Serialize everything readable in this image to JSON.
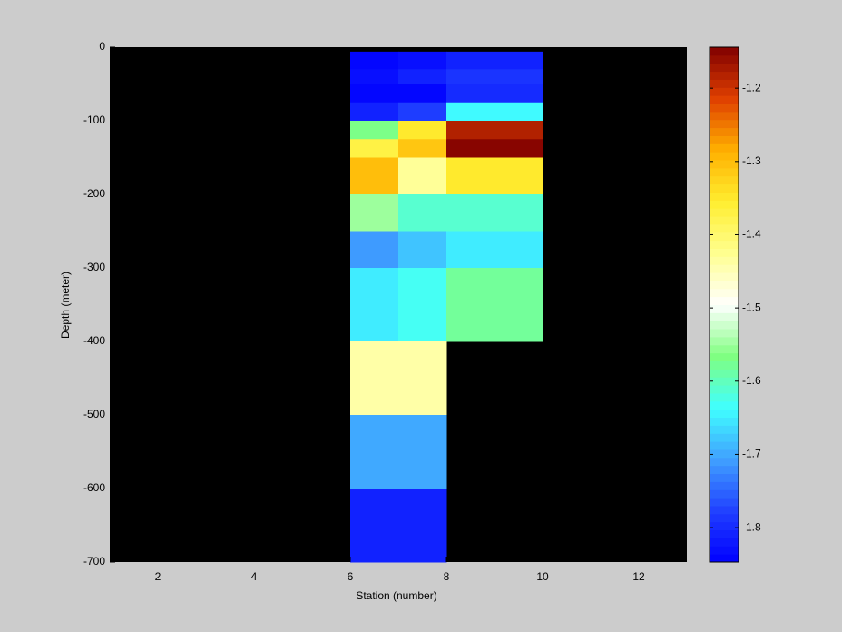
{
  "chart_data": {
    "type": "heatmap",
    "xlabel": "Station (number)",
    "ylabel": "Depth (meter)",
    "x_edges": [
      6,
      7,
      8,
      10
    ],
    "y_edges": [
      -6,
      -30,
      -50,
      -75,
      -100,
      -125,
      -150,
      -200,
      -250,
      -300,
      -400,
      -500,
      -600,
      -700
    ],
    "values": [
      [
        -1.84,
        -1.83,
        -1.81
      ],
      [
        -1.83,
        -1.81,
        -1.79
      ],
      [
        -1.84,
        -1.84,
        -1.8
      ],
      [
        -1.81,
        -1.78,
        -1.64
      ],
      [
        -1.57,
        -1.35,
        -1.18
      ],
      [
        -1.37,
        -1.31,
        -1.15
      ],
      [
        -1.3,
        -1.43,
        -1.35
      ],
      [
        -1.55,
        -1.61,
        -1.61
      ],
      [
        -1.71,
        -1.68,
        -1.65
      ],
      [
        -1.65,
        -1.63,
        -1.58
      ],
      [
        -1.44,
        -1.44,
        null
      ],
      [
        -1.7,
        -1.7,
        null
      ],
      [
        -1.81,
        -1.81,
        null
      ]
    ],
    "xlim": [
      1,
      13
    ],
    "xticks": [
      2,
      4,
      6,
      8,
      10,
      12
    ],
    "ylim": [
      -700,
      0
    ],
    "yticks": [
      0,
      -100,
      -200,
      -300,
      -400,
      -500,
      -600,
      -700
    ],
    "colorbar": {
      "lim": [
        -1.847,
        -1.144
      ],
      "ticks": [
        -1.2,
        -1.3,
        -1.4,
        -1.5,
        -1.6,
        -1.7,
        -1.8
      ],
      "colors": [
        "#0000ff",
        "#2040ff",
        "#40a0ff",
        "#40ffff",
        "#80ff80",
        "#ffffff",
        "#ffff90",
        "#ffee30",
        "#ffb000",
        "#e04000",
        "#800000"
      ]
    },
    "axes_color": "#000000"
  }
}
